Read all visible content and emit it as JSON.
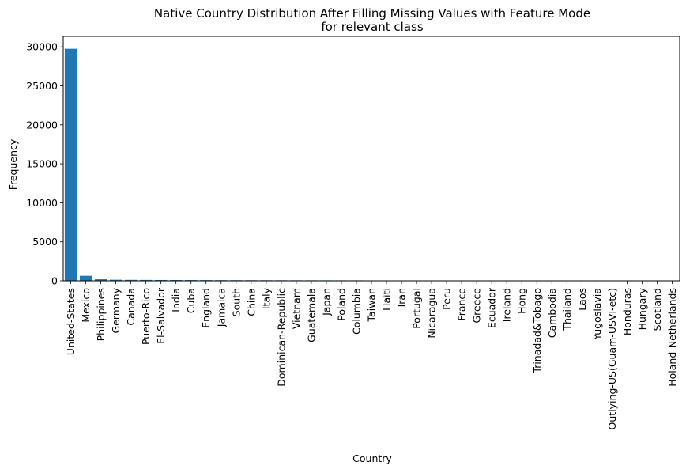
{
  "chart_data": {
    "type": "bar",
    "title": "Native Country Distribution After Filling Missing Values with Feature Mode",
    "subtitle": "for relevant class",
    "xlabel": "Country",
    "ylabel": "Frequency",
    "ylim": [
      0,
      31340
    ],
    "yticks": [
      0,
      5000,
      10000,
      15000,
      20000,
      25000,
      30000
    ],
    "grid": false,
    "legend": false,
    "bar_color": "#1f77b4",
    "categories": [
      "United-States",
      "Mexico",
      "Philippines",
      "Germany",
      "Canada",
      "Puerto-Rico",
      "El-Salvador",
      "India",
      "Cuba",
      "England",
      "Jamaica",
      "South",
      "China",
      "Italy",
      "Dominican-Republic",
      "Vietnam",
      "Guatemala",
      "Japan",
      "Poland",
      "Columbia",
      "Taiwan",
      "Haiti",
      "Iran",
      "Portugal",
      "Nicaragua",
      "Peru",
      "France",
      "Greece",
      "Ecuador",
      "Ireland",
      "Hong",
      "Trinadad&Tobago",
      "Cambodia",
      "Thailand",
      "Laos",
      "Yugoslavia",
      "Outlying-US(Guam-USVI-etc)",
      "Honduras",
      "Hungary",
      "Scotland",
      "Holand-Netherlands"
    ],
    "values": [
      29753,
      643,
      198,
      137,
      121,
      114,
      106,
      100,
      95,
      90,
      81,
      80,
      75,
      73,
      70,
      67,
      64,
      62,
      60,
      59,
      51,
      44,
      43,
      37,
      34,
      31,
      29,
      29,
      28,
      24,
      20,
      19,
      19,
      18,
      18,
      16,
      14,
      13,
      13,
      12,
      1
    ]
  }
}
